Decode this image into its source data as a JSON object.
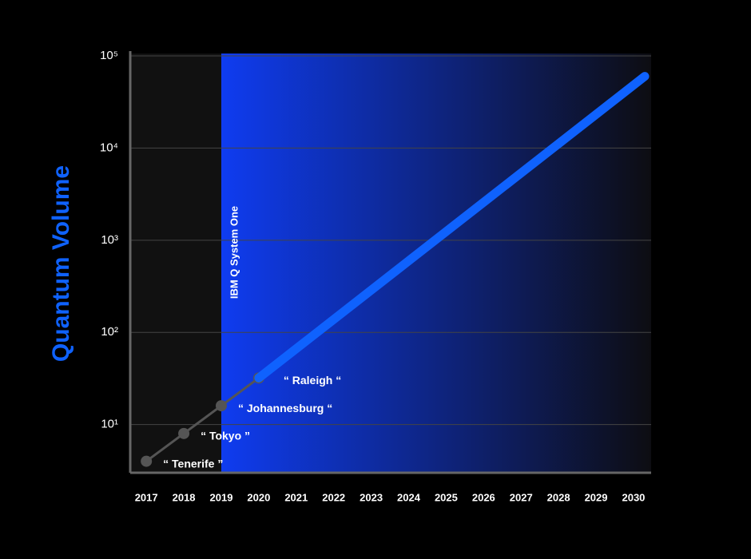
{
  "chart_data": {
    "type": "line",
    "y_label": "Quantum Volume",
    "log_y": true,
    "grid": true,
    "xlim": [
      2016.57,
      2030.47
    ],
    "xticks": [
      2017,
      2018,
      2019,
      2020,
      2021,
      2022,
      2023,
      2024,
      2025,
      2026,
      2027,
      2028,
      2029,
      2030
    ],
    "ylim": [
      3,
      100000
    ],
    "yticks": [
      {
        "value": 10,
        "label": "10¹"
      },
      {
        "value": 100,
        "label": "10²"
      },
      {
        "value": 1000,
        "label": "10³"
      },
      {
        "value": 10000,
        "label": "10⁴"
      },
      {
        "value": 100000,
        "label": "10⁵"
      }
    ],
    "shaded_from_x": 2019,
    "shade_color": "#0f3cf0",
    "annotation": {
      "text": "IBM Q System One",
      "x": 2019
    },
    "series": [
      {
        "color": "#555555",
        "x": [
          2017,
          2018,
          2019,
          2020
        ],
        "values": [
          4,
          8,
          16,
          32
        ],
        "point_labels": [
          "“ Tenerife ”",
          "“ Tokyo ”",
          "“ Johannesburg “",
          "“ Raleigh “"
        ]
      },
      {
        "color": "#0f62fe",
        "x": [
          2020,
          2030.3
        ],
        "values": [
          32,
          60000
        ]
      }
    ]
  }
}
